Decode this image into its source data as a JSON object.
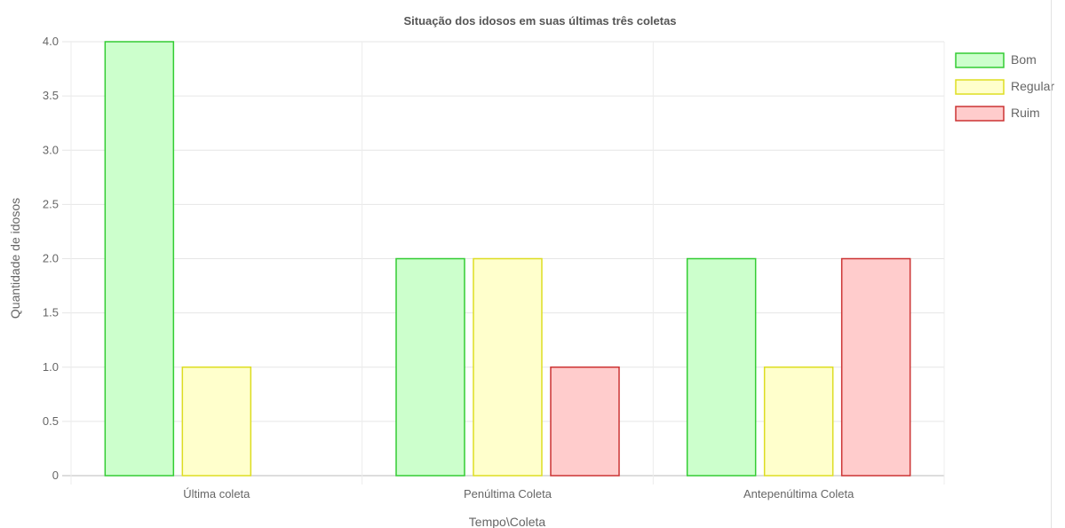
{
  "chart_data": {
    "type": "bar",
    "title": "Situação dos idosos em suas últimas três coletas",
    "xlabel": "Tempo\\Coleta",
    "ylabel": "Quantidade de idosos",
    "categories": [
      "Última coleta",
      "Penúltima Coleta",
      "Antepenúltima Coleta"
    ],
    "ylim": [
      0,
      4
    ],
    "yticks": [
      "0",
      "0.5",
      "1.0",
      "1.5",
      "2.0",
      "2.5",
      "3.0",
      "3.5",
      "4.0"
    ],
    "grid": true,
    "legend_position": "right",
    "series": [
      {
        "name": "Bom",
        "values": [
          4,
          2,
          2
        ],
        "fill": "#ccffcc",
        "stroke": "#33cc33"
      },
      {
        "name": "Regular",
        "values": [
          1,
          2,
          1
        ],
        "fill": "#ffffcc",
        "stroke": "#dddd22"
      },
      {
        "name": "Ruim",
        "values": [
          0,
          1,
          2
        ],
        "fill": "#ffcccc",
        "stroke": "#cc3333"
      }
    ]
  }
}
